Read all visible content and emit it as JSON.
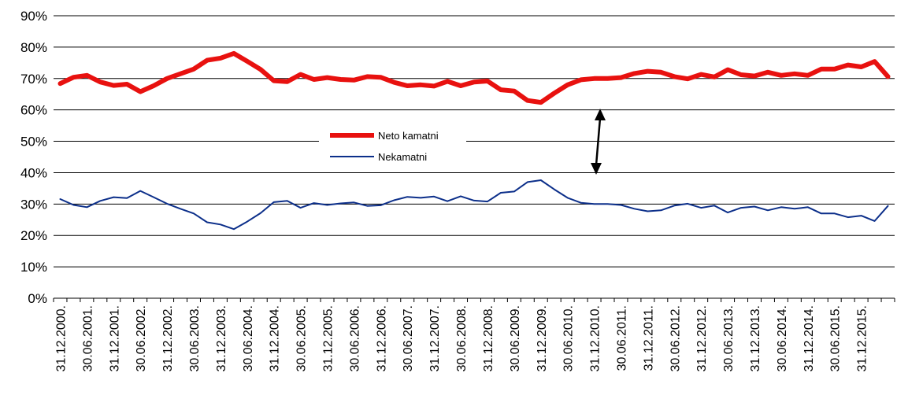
{
  "chart_data": {
    "type": "line",
    "title": "",
    "xlabel": "",
    "ylabel": "",
    "ylim": [
      0,
      90
    ],
    "y_ticks": [
      "0%",
      "10%",
      "20%",
      "30%",
      "40%",
      "50%",
      "60%",
      "70%",
      "80%",
      "90%"
    ],
    "grid": true,
    "legend": "center-left",
    "x_labels": [
      "31.12.2000.",
      "30.06.2001.",
      "31.12.2001.",
      "30.06.2002.",
      "31.12.2002.",
      "30.06.2003.",
      "31.12.2003.",
      "30.06.2004.",
      "31.12.2004.",
      "30.06.2005.",
      "31.12.2005.",
      "30.06.2006.",
      "31.12.2006.",
      "30.06.2007.",
      "31.12.2007.",
      "30.06.2008.",
      "31.12.2008.",
      "30.06.2009.",
      "31.12.2009.",
      "30.06.2010.",
      "31.12.2010.",
      "30.06.2011.",
      "31.12.2011.",
      "30.06.2012.",
      "31.12.2012.",
      "30.06.2013.",
      "31.12.2013.",
      "30.06.2014.",
      "31.12.2014.",
      "30.06.2015.",
      "31.12.2015."
    ],
    "points_per_label": 2,
    "series": [
      {
        "name": "Neto kamatni",
        "color": "#e8110f",
        "values": [
          68.4,
          70.4,
          71.0,
          68.9,
          67.8,
          68.2,
          65.8,
          67.7,
          70.0,
          71.5,
          73.0,
          75.8,
          76.5,
          78.0,
          75.5,
          72.9,
          69.3,
          69.0,
          71.3,
          69.7,
          70.3,
          69.7,
          69.5,
          70.6,
          70.4,
          68.8,
          67.7,
          68.0,
          67.6,
          69.1,
          67.7,
          68.9,
          69.2,
          66.4,
          66.0,
          63.0,
          62.4,
          65.3,
          68.0,
          69.6,
          70.0,
          70.0,
          70.3,
          71.6,
          72.3,
          72.0,
          70.6,
          69.9,
          71.3,
          70.5,
          72.8,
          71.2,
          70.8,
          72.0,
          71.0,
          71.5,
          71.0,
          73.0,
          73.0,
          74.3,
          73.7,
          75.4,
          70.6
        ]
      },
      {
        "name": "Nekamatni",
        "color": "#0c2f8a",
        "values": [
          31.6,
          29.7,
          29.0,
          31.0,
          32.2,
          31.9,
          34.2,
          32.2,
          30.1,
          28.5,
          27.0,
          24.2,
          23.5,
          22.0,
          24.4,
          27.1,
          30.6,
          31.0,
          28.8,
          30.3,
          29.7,
          30.2,
          30.5,
          29.4,
          29.6,
          31.2,
          32.3,
          32.0,
          32.4,
          30.9,
          32.5,
          31.1,
          30.8,
          33.6,
          34.0,
          37.0,
          37.6,
          34.7,
          32.0,
          30.4,
          30.0,
          30.0,
          29.7,
          28.5,
          27.7,
          28.0,
          29.5,
          30.1,
          28.8,
          29.5,
          27.3,
          28.8,
          29.2,
          28.0,
          29.0,
          28.5,
          29.0,
          27.0,
          27.0,
          25.8,
          26.3,
          24.6,
          29.4
        ]
      }
    ]
  }
}
